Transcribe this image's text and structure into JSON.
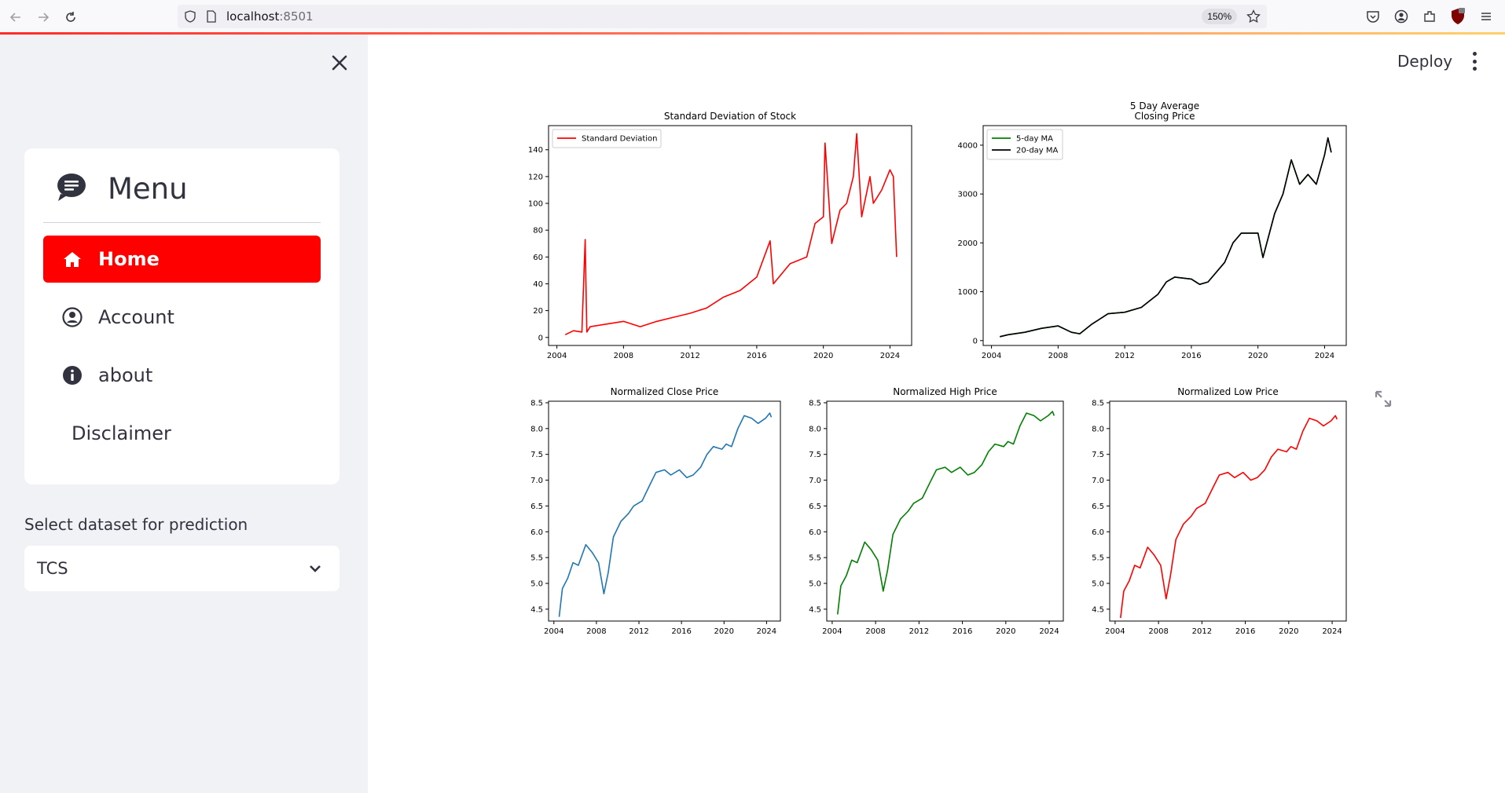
{
  "browser": {
    "url_host": "localhost",
    "url_port": ":8501",
    "zoom": "150%"
  },
  "sidebar": {
    "menu_title": "Menu",
    "items": [
      {
        "label": "Home",
        "icon": "house-icon",
        "active": true
      },
      {
        "label": "Account",
        "icon": "user-circle-icon",
        "active": false
      },
      {
        "label": "about",
        "icon": "info-icon",
        "active": false
      },
      {
        "label": "Disclaimer",
        "icon": "",
        "active": false
      }
    ],
    "select_label": "Select dataset for prediction",
    "select_value": "TCS"
  },
  "header": {
    "deploy_label": "Deploy"
  },
  "colors": {
    "accent": "#ff0000",
    "sidebar_bg": "#f0f2f6",
    "text": "#31333f"
  },
  "chart_data": [
    {
      "type": "line",
      "title": "Standard Deviation of Stock",
      "xlim": [
        2003.5,
        2025.3
      ],
      "ylim": [
        -6,
        158
      ],
      "xticks": [
        2004,
        2008,
        2012,
        2016,
        2020,
        2024
      ],
      "yticks": [
        0,
        20,
        40,
        60,
        80,
        100,
        120,
        140
      ],
      "legend_loc": "upper-left",
      "series": [
        {
          "name": "Standard Deviation",
          "color": "#ff0000",
          "x": [
            2004.5,
            2005,
            2005.5,
            2005.7,
            2005.8,
            2006,
            2007,
            2008,
            2009,
            2010,
            2011,
            2012,
            2013,
            2014,
            2015,
            2016,
            2016.8,
            2017,
            2018,
            2019,
            2019.5,
            2020,
            2020.1,
            2020.5,
            2021,
            2021.4,
            2021.8,
            2022,
            2022.3,
            2022.8,
            2023,
            2023.5,
            2024,
            2024.2,
            2024.4
          ],
          "y": [
            2,
            5,
            4,
            73,
            4,
            8,
            10,
            12,
            8,
            12,
            15,
            18,
            22,
            30,
            35,
            45,
            72,
            40,
            55,
            60,
            85,
            90,
            145,
            70,
            95,
            100,
            120,
            152,
            90,
            120,
            100,
            110,
            125,
            120,
            60
          ]
        }
      ]
    },
    {
      "type": "line",
      "title": "5 Day Average\nClosing Price",
      "xlim": [
        2003.5,
        2025.3
      ],
      "ylim": [
        -100,
        4400
      ],
      "xticks": [
        2004,
        2008,
        2012,
        2016,
        2020,
        2024
      ],
      "yticks": [
        0,
        1000,
        2000,
        3000,
        4000
      ],
      "legend_loc": "upper-left",
      "series": [
        {
          "name": "5-day MA",
          "color": "#008000",
          "x": [
            2004.5,
            2005,
            2006,
            2007,
            2008,
            2008.8,
            2009.3,
            2010,
            2011,
            2012,
            2013,
            2014,
            2014.5,
            2015,
            2016,
            2016.5,
            2017,
            2018,
            2018.5,
            2019,
            2020,
            2020.3,
            2021,
            2021.5,
            2022,
            2022.5,
            2023,
            2023.5,
            2024,
            2024.2,
            2024.4
          ],
          "y": [
            80,
            120,
            170,
            250,
            300,
            170,
            140,
            330,
            550,
            580,
            680,
            950,
            1200,
            1300,
            1260,
            1150,
            1200,
            1600,
            2000,
            2200,
            2200,
            1700,
            2600,
            3000,
            3700,
            3200,
            3400,
            3200,
            3800,
            4150,
            3850
          ]
        },
        {
          "name": "20-day MA",
          "color": "#000000",
          "x": [
            2004.5,
            2005,
            2006,
            2007,
            2008,
            2008.8,
            2009.3,
            2010,
            2011,
            2012,
            2013,
            2014,
            2014.5,
            2015,
            2016,
            2016.5,
            2017,
            2018,
            2018.5,
            2019,
            2020,
            2020.3,
            2021,
            2021.5,
            2022,
            2022.5,
            2023,
            2023.5,
            2024,
            2024.2,
            2024.4
          ],
          "y": [
            80,
            120,
            170,
            250,
            300,
            170,
            140,
            330,
            550,
            580,
            680,
            950,
            1200,
            1300,
            1260,
            1150,
            1200,
            1600,
            2000,
            2200,
            2200,
            1700,
            2600,
            3000,
            3700,
            3200,
            3400,
            3200,
            3800,
            4150,
            3850
          ]
        }
      ]
    },
    {
      "type": "line",
      "title": "Normalized Close Price",
      "xlim": [
        2003.5,
        2025.3
      ],
      "ylim": [
        4.27,
        8.53
      ],
      "xticks": [
        2004,
        2008,
        2012,
        2016,
        2020,
        2024
      ],
      "yticks": [
        4.5,
        5.0,
        5.5,
        6.0,
        6.5,
        7.0,
        7.5,
        8.0,
        8.5
      ],
      "series": [
        {
          "color": "#1f77b4",
          "x": [
            2004.5,
            2004.8,
            2005.3,
            2005.8,
            2006.3,
            2007,
            2007.6,
            2008.2,
            2008.7,
            2009.1,
            2009.6,
            2010.3,
            2011,
            2011.5,
            2012.3,
            2013,
            2013.6,
            2014.4,
            2015,
            2015.8,
            2016.5,
            2017.1,
            2017.8,
            2018.4,
            2019,
            2019.8,
            2020.2,
            2020.7,
            2021.3,
            2021.9,
            2022.6,
            2023.2,
            2023.9,
            2024.3,
            2024.45
          ],
          "y": [
            4.35,
            4.9,
            5.1,
            5.4,
            5.35,
            5.75,
            5.6,
            5.4,
            4.8,
            5.2,
            5.9,
            6.2,
            6.35,
            6.5,
            6.6,
            6.9,
            7.15,
            7.2,
            7.1,
            7.2,
            7.05,
            7.1,
            7.25,
            7.5,
            7.65,
            7.6,
            7.7,
            7.65,
            8.0,
            8.25,
            8.2,
            8.1,
            8.2,
            8.3,
            8.22
          ]
        }
      ]
    },
    {
      "type": "line",
      "title": "Normalized High Price",
      "xlim": [
        2003.5,
        2025.3
      ],
      "ylim": [
        4.27,
        8.53
      ],
      "xticks": [
        2004,
        2008,
        2012,
        2016,
        2020,
        2024
      ],
      "yticks": [
        4.5,
        5.0,
        5.5,
        6.0,
        6.5,
        7.0,
        7.5,
        8.0,
        8.5
      ],
      "series": [
        {
          "color": "#008000",
          "x": [
            2004.5,
            2004.8,
            2005.3,
            2005.8,
            2006.3,
            2007,
            2007.6,
            2008.2,
            2008.7,
            2009.1,
            2009.6,
            2010.3,
            2011,
            2011.5,
            2012.3,
            2013,
            2013.6,
            2014.4,
            2015,
            2015.8,
            2016.5,
            2017.1,
            2017.8,
            2018.4,
            2019,
            2019.8,
            2020.2,
            2020.7,
            2021.3,
            2021.9,
            2022.6,
            2023.2,
            2023.9,
            2024.3,
            2024.45
          ],
          "y": [
            4.4,
            4.95,
            5.15,
            5.45,
            5.4,
            5.8,
            5.65,
            5.45,
            4.85,
            5.25,
            5.95,
            6.25,
            6.4,
            6.55,
            6.65,
            6.95,
            7.2,
            7.25,
            7.15,
            7.25,
            7.1,
            7.15,
            7.3,
            7.55,
            7.7,
            7.65,
            7.75,
            7.7,
            8.05,
            8.3,
            8.25,
            8.15,
            8.25,
            8.33,
            8.25
          ]
        }
      ]
    },
    {
      "type": "line",
      "title": "Normalized Low Price",
      "xlim": [
        2003.5,
        2025.3
      ],
      "ylim": [
        4.27,
        8.53
      ],
      "xticks": [
        2004,
        2008,
        2012,
        2016,
        2020,
        2024
      ],
      "yticks": [
        4.5,
        5.0,
        5.5,
        6.0,
        6.5,
        7.0,
        7.5,
        8.0,
        8.5
      ],
      "series": [
        {
          "color": "#ff0000",
          "x": [
            2004.5,
            2004.8,
            2005.3,
            2005.8,
            2006.3,
            2007,
            2007.6,
            2008.2,
            2008.7,
            2009.1,
            2009.6,
            2010.3,
            2011,
            2011.5,
            2012.3,
            2013,
            2013.6,
            2014.4,
            2015,
            2015.8,
            2016.5,
            2017.1,
            2017.8,
            2018.4,
            2019,
            2019.8,
            2020.2,
            2020.7,
            2021.3,
            2021.9,
            2022.6,
            2023.2,
            2023.9,
            2024.3,
            2024.45
          ],
          "y": [
            4.33,
            4.85,
            5.05,
            5.35,
            5.3,
            5.7,
            5.55,
            5.35,
            4.7,
            5.15,
            5.85,
            6.15,
            6.3,
            6.45,
            6.55,
            6.85,
            7.1,
            7.15,
            7.05,
            7.15,
            7.0,
            7.05,
            7.2,
            7.45,
            7.6,
            7.55,
            7.65,
            7.6,
            7.95,
            8.2,
            8.15,
            8.05,
            8.15,
            8.25,
            8.18
          ]
        }
      ]
    }
  ]
}
